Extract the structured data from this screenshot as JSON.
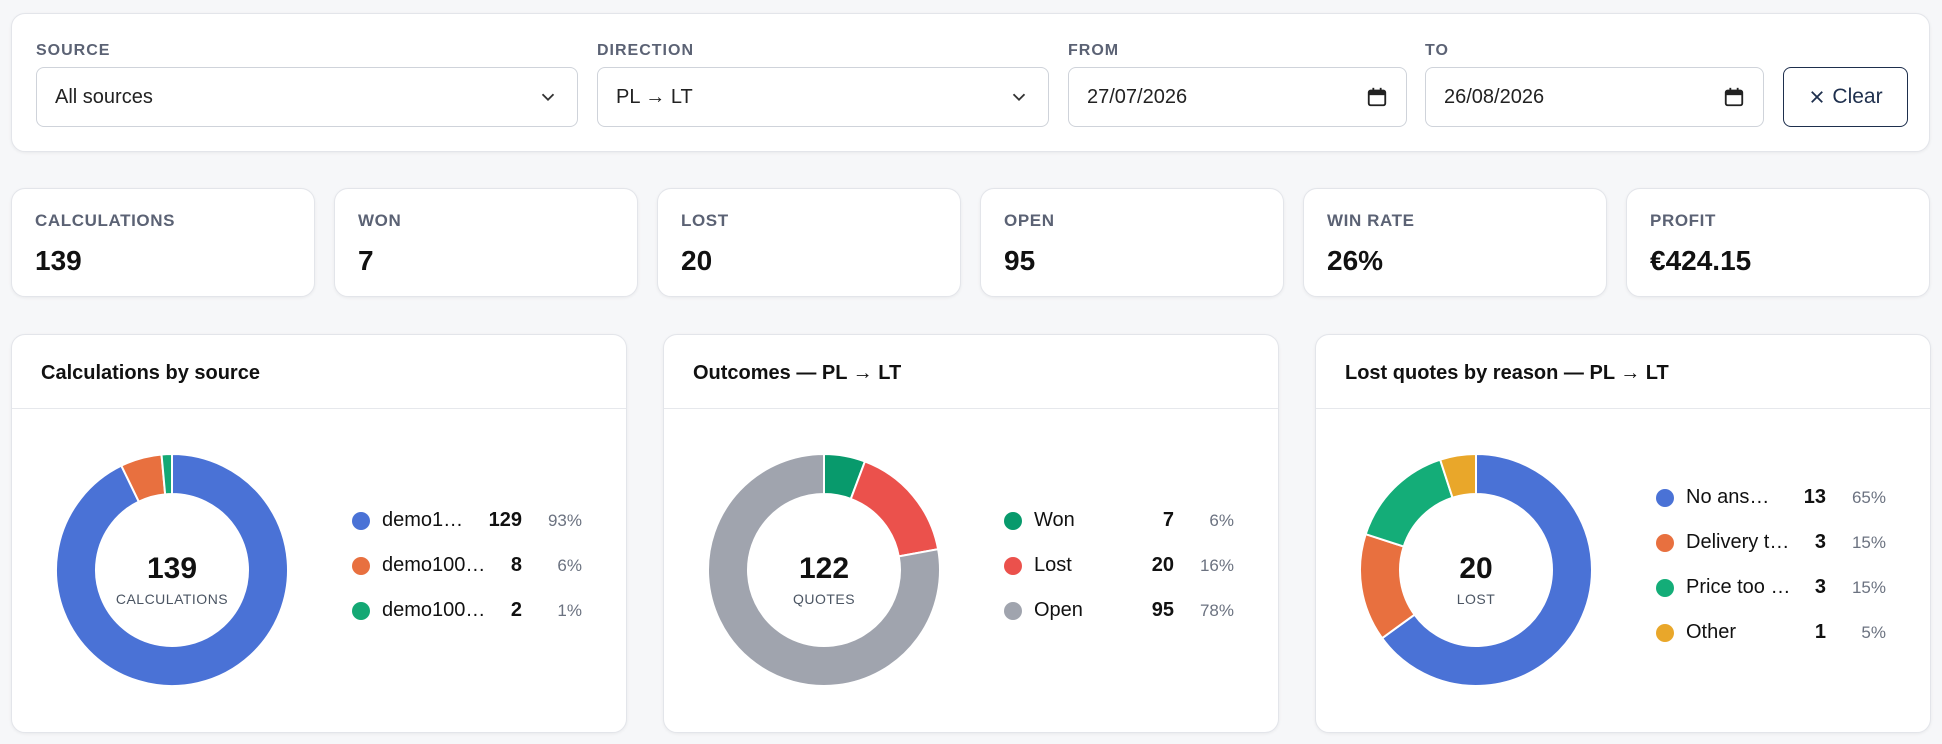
{
  "filters": {
    "source": {
      "label": "SOURCE",
      "value": "All sources"
    },
    "direction": {
      "label": "DIRECTION",
      "value": "PL → LT"
    },
    "from": {
      "label": "FROM",
      "value": "27/07/2026"
    },
    "to": {
      "label": "TO",
      "value": "26/08/2026"
    },
    "clear_label": "Clear"
  },
  "kpis": [
    {
      "label": "CALCULATIONS",
      "value": "139"
    },
    {
      "label": "WON",
      "value": "7"
    },
    {
      "label": "LOST",
      "value": "20"
    },
    {
      "label": "OPEN",
      "value": "95"
    },
    {
      "label": "WIN RATE",
      "value": "26%"
    },
    {
      "label": "PROFIT",
      "value": "€424.15"
    }
  ],
  "panels": [
    {
      "title": "Calculations by source",
      "center_value": "139",
      "center_label": "CALCULATIONS",
      "legend": [
        {
          "name": "demo1…",
          "value": "129",
          "pct": "93%"
        },
        {
          "name": "demo100…",
          "value": "8",
          "pct": "6%"
        },
        {
          "name": "demo100…",
          "value": "2",
          "pct": "1%"
        }
      ]
    },
    {
      "title": "Outcomes — PL → LT",
      "center_value": "122",
      "center_label": "QUOTES",
      "legend": [
        {
          "name": "Won",
          "value": "7",
          "pct": "6%"
        },
        {
          "name": "Lost",
          "value": "20",
          "pct": "16%"
        },
        {
          "name": "Open",
          "value": "95",
          "pct": "78%"
        }
      ]
    },
    {
      "title": "Lost quotes by reason — PL → LT",
      "center_value": "20",
      "center_label": "LOST",
      "legend": [
        {
          "name": "No ans…",
          "value": "13",
          "pct": "65%"
        },
        {
          "name": "Delivery t…",
          "value": "3",
          "pct": "15%"
        },
        {
          "name": "Price too …",
          "value": "3",
          "pct": "15%"
        },
        {
          "name": "Other",
          "value": "1",
          "pct": "5%"
        }
      ]
    }
  ],
  "chart_data": [
    {
      "type": "pie",
      "categories": [
        "demo1…",
        "demo100…",
        "demo100…"
      ],
      "values": [
        129,
        8,
        2
      ],
      "colors": [
        "#4a72d6",
        "#e8703f",
        "#14a874"
      ]
    },
    {
      "type": "pie",
      "categories": [
        "Won",
        "Lost",
        "Open"
      ],
      "values": [
        7,
        20,
        95
      ],
      "colors": [
        "#089a6c",
        "#eb514c",
        "#a0a4ae"
      ]
    },
    {
      "type": "pie",
      "categories": [
        "No ans…",
        "Delivery t…",
        "Price too …",
        "Other"
      ],
      "values": [
        13,
        3,
        3,
        1
      ],
      "colors": [
        "#4a72d6",
        "#e8703f",
        "#14ad78",
        "#e9a72a"
      ]
    }
  ]
}
